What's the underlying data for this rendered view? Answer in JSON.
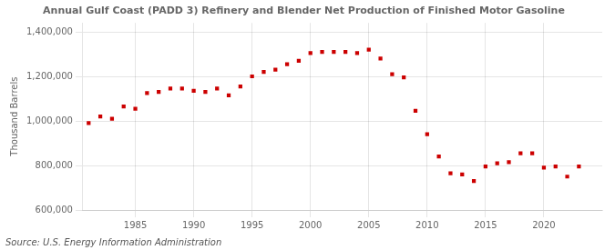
{
  "chart_data": {
    "type": "scatter",
    "title": "Annual Gulf Coast (PADD 3) Refinery and Blender Net Production of Finished Motor Gasoline",
    "ylabel": "Thousand Barrels",
    "annotations": [
      "Source: U.S. Energy Information Administration"
    ],
    "x": [
      1981,
      1982,
      1983,
      1984,
      1985,
      1986,
      1987,
      1988,
      1989,
      1990,
      1991,
      1992,
      1993,
      1994,
      1995,
      1996,
      1997,
      1998,
      1999,
      2000,
      2001,
      2002,
      2003,
      2004,
      2005,
      2006,
      2007,
      2008,
      2009,
      2010,
      2011,
      2012,
      2013,
      2014,
      2015,
      2016,
      2017,
      2018,
      2019,
      2020,
      2021,
      2022,
      2023
    ],
    "values": [
      990000,
      1020000,
      1010000,
      1065000,
      1055000,
      1125000,
      1130000,
      1145000,
      1145000,
      1135000,
      1130000,
      1145000,
      1115000,
      1155000,
      1200000,
      1220000,
      1230000,
      1255000,
      1270000,
      1305000,
      1310000,
      1310000,
      1310000,
      1305000,
      1320000,
      1280000,
      1210000,
      1195000,
      1045000,
      940000,
      840000,
      765000,
      760000,
      730000,
      795000,
      810000,
      815000,
      855000,
      855000,
      790000,
      795000,
      750000,
      795000
    ],
    "color": "#cc0000",
    "marker": "square",
    "xlim": [
      1980.5,
      2025
    ],
    "xticks": [
      1985,
      1990,
      1995,
      2000,
      2005,
      2010,
      2015,
      2020
    ],
    "ylim": [
      600000,
      1440000
    ],
    "yticks": [
      {
        "value": 600000,
        "label": "600,000"
      },
      {
        "value": 800000,
        "label": "800,000"
      },
      {
        "value": 1000000,
        "label": "1,000,000"
      },
      {
        "value": 1200000,
        "label": "1,200,000"
      },
      {
        "value": 1400000,
        "label": "1,400,000"
      }
    ],
    "grid": true
  }
}
